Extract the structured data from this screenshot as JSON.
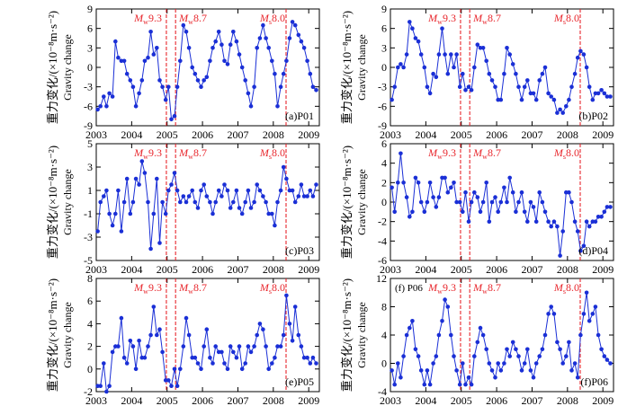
{
  "figure": {
    "ylabel_cn": "重力变化/(×10⁻⁸m·s⁻²)",
    "ylabel_en": "Gravity change",
    "x_ticks": [
      "2003",
      "2004",
      "2005",
      "2006",
      "2007",
      "2008",
      "2009"
    ],
    "events": [
      {
        "prefix": "M",
        "sub": "w",
        "value": "9.3",
        "year": 2004.98
      },
      {
        "prefix": "M",
        "sub": "w",
        "value": "8.7",
        "year": 2005.24
      },
      {
        "prefix": "M",
        "sub": "s",
        "value": "8.0",
        "year": 2008.36
      }
    ],
    "colors": {
      "series": "#1a2fd6",
      "event": "#e8262c",
      "axis": "#000000"
    }
  },
  "chart_data": [
    {
      "type": "line",
      "title": "(a)P01",
      "panel_label": "(a)P01",
      "xlabel": "",
      "ylabel": "Gravity change",
      "xlim": [
        2003,
        2009.3
      ],
      "ylim": [
        -9,
        9
      ],
      "y_ticks": [
        -9,
        -6,
        -3,
        0,
        3,
        6,
        9
      ],
      "x": [
        2003.04,
        2003.12,
        2003.21,
        2003.29,
        2003.37,
        2003.46,
        2003.54,
        2003.62,
        2003.71,
        2003.79,
        2003.87,
        2003.96,
        2004.04,
        2004.12,
        2004.21,
        2004.29,
        2004.37,
        2004.46,
        2004.54,
        2004.62,
        2004.71,
        2004.79,
        2004.87,
        2004.96,
        2005.04,
        2005.12,
        2005.21,
        2005.29,
        2005.37,
        2005.46,
        2005.54,
        2005.62,
        2005.71,
        2005.79,
        2005.87,
        2005.96,
        2006.04,
        2006.12,
        2006.21,
        2006.29,
        2006.37,
        2006.46,
        2006.54,
        2006.62,
        2006.71,
        2006.79,
        2006.87,
        2006.96,
        2007.04,
        2007.12,
        2007.21,
        2007.29,
        2007.37,
        2007.46,
        2007.54,
        2007.62,
        2007.71,
        2007.79,
        2007.87,
        2007.96,
        2008.04,
        2008.12,
        2008.21,
        2008.29,
        2008.37,
        2008.46,
        2008.54,
        2008.62,
        2008.71,
        2008.79,
        2008.87,
        2008.96,
        2009.04,
        2009.12,
        2009.21
      ],
      "values": [
        -6.5,
        -6,
        -4.5,
        -6,
        -4,
        -4.5,
        4,
        1.5,
        1,
        1,
        -1,
        -2,
        -3,
        -6,
        -4,
        -2,
        1,
        1.5,
        5.5,
        2,
        3,
        -2,
        -3,
        -5,
        -3,
        -8,
        -7.5,
        -3,
        1,
        6.5,
        5.5,
        3,
        0,
        -1,
        -2,
        -3,
        -2,
        -1.5,
        1,
        3,
        4,
        5.5,
        3.5,
        1,
        0.5,
        3.5,
        5.5,
        4,
        2,
        0,
        -2,
        -4,
        -6,
        -3,
        3,
        4.5,
        6.5,
        4.5,
        3,
        1,
        -1,
        -6,
        -3,
        -1,
        1,
        4.5,
        7,
        6.5,
        5,
        4,
        3,
        1,
        -1,
        -3,
        -3.5
      ]
    },
    {
      "type": "line",
      "title": "(b)P02",
      "panel_label": "(b)P02",
      "xlabel": "",
      "ylabel": "Gravity change",
      "xlim": [
        2003,
        2009.3
      ],
      "ylim": [
        -9,
        9
      ],
      "y_ticks": [
        -9,
        -6,
        -3,
        0,
        3,
        6,
        9
      ],
      "x": [
        2003.04,
        2003.12,
        2003.21,
        2003.29,
        2003.37,
        2003.46,
        2003.54,
        2003.62,
        2003.71,
        2003.79,
        2003.87,
        2003.96,
        2004.04,
        2004.12,
        2004.21,
        2004.29,
        2004.37,
        2004.46,
        2004.54,
        2004.62,
        2004.71,
        2004.79,
        2004.87,
        2004.96,
        2005.04,
        2005.12,
        2005.21,
        2005.29,
        2005.37,
        2005.46,
        2005.54,
        2005.62,
        2005.71,
        2005.79,
        2005.87,
        2005.96,
        2006.04,
        2006.12,
        2006.21,
        2006.29,
        2006.37,
        2006.46,
        2006.54,
        2006.62,
        2006.71,
        2006.79,
        2006.87,
        2006.96,
        2007.04,
        2007.12,
        2007.21,
        2007.29,
        2007.37,
        2007.46,
        2007.54,
        2007.62,
        2007.71,
        2007.79,
        2007.87,
        2007.96,
        2008.04,
        2008.12,
        2008.21,
        2008.29,
        2008.37,
        2008.46,
        2008.54,
        2008.62,
        2008.71,
        2008.79,
        2008.87,
        2008.96,
        2009.04,
        2009.12,
        2009.21
      ],
      "values": [
        -5,
        -3,
        0,
        0.5,
        0,
        2,
        7,
        6,
        4.5,
        4,
        2,
        0,
        -3,
        -4,
        -1,
        -1.5,
        2,
        6,
        2,
        -1,
        2,
        0,
        2,
        -3,
        -1,
        -3.5,
        -3,
        -3.5,
        0,
        3.5,
        3,
        3,
        1,
        -1,
        -2,
        -3,
        -5,
        -5,
        -1,
        3,
        2,
        0.5,
        -1,
        -3,
        -5,
        -3,
        -2,
        -4,
        -4,
        -5,
        -2,
        -1,
        0,
        -4,
        -4.5,
        -5,
        -7,
        -6.5,
        -7,
        -6,
        -5,
        -3,
        -1,
        1.5,
        2.5,
        2,
        0,
        -3,
        -5,
        -4,
        -4,
        -3.5,
        -4,
        -4.5,
        -4.5
      ]
    },
    {
      "type": "line",
      "title": "(c)P03",
      "panel_label": "(c)P03",
      "xlabel": "",
      "ylabel": "Gravity change",
      "xlim": [
        2003,
        2009.3
      ],
      "ylim": [
        -5,
        5
      ],
      "y_ticks": [
        -5,
        -3,
        -1,
        1,
        3,
        5
      ],
      "x": [
        2003.04,
        2003.12,
        2003.21,
        2003.29,
        2003.37,
        2003.46,
        2003.54,
        2003.62,
        2003.71,
        2003.79,
        2003.87,
        2003.96,
        2004.04,
        2004.12,
        2004.21,
        2004.29,
        2004.37,
        2004.46,
        2004.54,
        2004.62,
        2004.71,
        2004.79,
        2004.87,
        2004.96,
        2005.04,
        2005.12,
        2005.21,
        2005.29,
        2005.37,
        2005.46,
        2005.54,
        2005.62,
        2005.71,
        2005.79,
        2005.87,
        2005.96,
        2006.04,
        2006.12,
        2006.21,
        2006.29,
        2006.37,
        2006.46,
        2006.54,
        2006.62,
        2006.71,
        2006.79,
        2006.87,
        2006.96,
        2007.04,
        2007.12,
        2007.21,
        2007.29,
        2007.37,
        2007.46,
        2007.54,
        2007.62,
        2007.71,
        2007.79,
        2007.87,
        2007.96,
        2008.04,
        2008.12,
        2008.21,
        2008.29,
        2008.37,
        2008.46,
        2008.54,
        2008.62,
        2008.71,
        2008.79,
        2008.87,
        2008.96,
        2009.04,
        2009.12,
        2009.21
      ],
      "values": [
        -2.5,
        0,
        0.5,
        1,
        -1,
        -2,
        -1,
        1,
        -2.5,
        0,
        2,
        -1,
        0,
        2,
        1.5,
        3.5,
        2.5,
        0,
        -4,
        -1,
        2,
        -3.5,
        0,
        -1,
        1,
        1.5,
        2.5,
        1,
        0,
        0.5,
        0,
        0.5,
        1,
        0,
        -0.5,
        1,
        1.5,
        0.5,
        0,
        -1,
        0,
        1,
        0.5,
        1.5,
        1,
        -0.5,
        0,
        1,
        -0.5,
        -1,
        0,
        1,
        -0.5,
        0,
        1.5,
        1,
        0.5,
        0,
        -1,
        -1,
        -2,
        0,
        1,
        3,
        2,
        1,
        1,
        0,
        0.5,
        1.5,
        0.5,
        0.5,
        1,
        0.5,
        1.5
      ]
    },
    {
      "type": "line",
      "title": "(d)P04",
      "panel_label": "(d)P04",
      "xlabel": "",
      "ylabel": "Gravity change",
      "xlim": [
        2003,
        2009.3
      ],
      "ylim": [
        -6,
        6
      ],
      "y_ticks": [
        -6,
        -4,
        -2,
        0,
        2,
        4,
        6
      ],
      "x": [
        2003.04,
        2003.12,
        2003.21,
        2003.29,
        2003.37,
        2003.46,
        2003.54,
        2003.62,
        2003.71,
        2003.79,
        2003.87,
        2003.96,
        2004.04,
        2004.12,
        2004.21,
        2004.29,
        2004.37,
        2004.46,
        2004.54,
        2004.62,
        2004.71,
        2004.79,
        2004.87,
        2004.96,
        2005.04,
        2005.12,
        2005.21,
        2005.29,
        2005.37,
        2005.46,
        2005.54,
        2005.62,
        2005.71,
        2005.79,
        2005.87,
        2005.96,
        2006.04,
        2006.12,
        2006.21,
        2006.29,
        2006.37,
        2006.46,
        2006.54,
        2006.62,
        2006.71,
        2006.79,
        2006.87,
        2006.96,
        2007.04,
        2007.12,
        2007.21,
        2007.29,
        2007.37,
        2007.46,
        2007.54,
        2007.62,
        2007.71,
        2007.79,
        2007.87,
        2007.96,
        2008.04,
        2008.12,
        2008.21,
        2008.29,
        2008.37,
        2008.46,
        2008.54,
        2008.62,
        2008.71,
        2008.79,
        2008.87,
        2008.96,
        2009.04,
        2009.12,
        2009.21
      ],
      "values": [
        1.5,
        -1,
        2,
        5,
        2,
        0.5,
        -1.5,
        -1,
        2.5,
        2,
        0,
        -1,
        0,
        2,
        0.5,
        -0.5,
        0.5,
        2.5,
        2.5,
        1,
        1.5,
        2,
        0,
        0,
        -1,
        1,
        -2,
        0,
        1,
        0.5,
        -1,
        0,
        2,
        -2,
        0,
        0.5,
        -1,
        0,
        1.5,
        0,
        2.5,
        1,
        -1,
        0,
        1,
        -1,
        -2,
        0,
        -0.5,
        -2,
        1,
        0,
        -1,
        -2,
        -2.5,
        -2,
        -2.5,
        -5.5,
        -3,
        1,
        1,
        0,
        -2,
        -3,
        -5,
        -4.5,
        -2,
        -2.5,
        -2,
        -2,
        -1.5,
        -1.5,
        -1,
        -0.5,
        -0.5
      ]
    },
    {
      "type": "line",
      "title": "(e)P05",
      "panel_label": "(e)P05",
      "xlabel": "",
      "ylabel": "Gravity change",
      "xlim": [
        2003,
        2009.3
      ],
      "ylim": [
        -2,
        8
      ],
      "y_ticks": [
        -2,
        0,
        2,
        4,
        6,
        8
      ],
      "x": [
        2003.04,
        2003.12,
        2003.21,
        2003.29,
        2003.37,
        2003.46,
        2003.54,
        2003.62,
        2003.71,
        2003.79,
        2003.87,
        2003.96,
        2004.04,
        2004.12,
        2004.21,
        2004.29,
        2004.37,
        2004.46,
        2004.54,
        2004.62,
        2004.71,
        2004.79,
        2004.87,
        2004.96,
        2005.04,
        2005.12,
        2005.21,
        2005.29,
        2005.37,
        2005.46,
        2005.54,
        2005.62,
        2005.71,
        2005.79,
        2005.87,
        2005.96,
        2006.04,
        2006.12,
        2006.21,
        2006.29,
        2006.37,
        2006.46,
        2006.54,
        2006.62,
        2006.71,
        2006.79,
        2006.87,
        2006.96,
        2007.04,
        2007.12,
        2007.21,
        2007.29,
        2007.37,
        2007.46,
        2007.54,
        2007.62,
        2007.71,
        2007.79,
        2007.87,
        2007.96,
        2008.04,
        2008.12,
        2008.21,
        2008.29,
        2008.37,
        2008.46,
        2008.54,
        2008.62,
        2008.71,
        2008.79,
        2008.87,
        2008.96,
        2009.04,
        2009.12,
        2009.21
      ],
      "values": [
        -1.5,
        -1.5,
        0.5,
        -2,
        -1.5,
        1.5,
        2,
        2,
        4.5,
        1,
        0.5,
        2.5,
        2,
        0,
        2.5,
        1,
        1,
        2,
        3,
        5.5,
        3,
        3.5,
        1.5,
        -1,
        -1,
        -1.5,
        0,
        -1.5,
        0,
        2,
        4.5,
        3,
        1,
        1,
        0.5,
        0,
        2,
        3.5,
        1,
        0.5,
        2,
        1.5,
        1.5,
        0.5,
        0,
        2,
        1.5,
        1,
        2,
        0,
        0.5,
        2,
        1.5,
        2,
        3,
        4,
        3.5,
        2,
        0,
        0.5,
        1,
        2,
        2,
        3,
        6.5,
        4,
        2.5,
        5.5,
        3,
        2,
        1,
        1,
        0.5,
        1,
        0.5
      ]
    },
    {
      "type": "line",
      "title": "(f)P06",
      "panel_label": "(f)P06",
      "corner_label": "(f) P06",
      "xlabel": "",
      "ylabel": "Gravity change",
      "xlim": [
        2003,
        2009.3
      ],
      "ylim": [
        -4,
        12
      ],
      "y_ticks": [
        -4,
        0,
        4,
        8,
        12
      ],
      "x": [
        2003.04,
        2003.12,
        2003.21,
        2003.29,
        2003.37,
        2003.46,
        2003.54,
        2003.62,
        2003.71,
        2003.79,
        2003.87,
        2003.96,
        2004.04,
        2004.12,
        2004.21,
        2004.29,
        2004.37,
        2004.46,
        2004.54,
        2004.62,
        2004.71,
        2004.79,
        2004.87,
        2004.96,
        2005.04,
        2005.12,
        2005.21,
        2005.29,
        2005.37,
        2005.46,
        2005.54,
        2005.62,
        2005.71,
        2005.79,
        2005.87,
        2005.96,
        2006.04,
        2006.12,
        2006.21,
        2006.29,
        2006.37,
        2006.46,
        2006.54,
        2006.62,
        2006.71,
        2006.79,
        2006.87,
        2006.96,
        2007.04,
        2007.12,
        2007.21,
        2007.29,
        2007.37,
        2007.46,
        2007.54,
        2007.62,
        2007.71,
        2007.79,
        2007.87,
        2007.96,
        2008.04,
        2008.12,
        2008.21,
        2008.29,
        2008.37,
        2008.46,
        2008.54,
        2008.62,
        2008.71,
        2008.79,
        2008.87,
        2008.96,
        2009.04,
        2009.12,
        2009.21
      ],
      "values": [
        -1,
        -3,
        0,
        -2,
        1,
        4,
        5,
        6,
        2,
        1,
        -1,
        -3,
        -1,
        -3,
        0,
        1,
        4,
        6,
        9,
        8,
        4,
        1,
        -1,
        -3,
        0,
        -3,
        -2,
        -3,
        1,
        3,
        5,
        4,
        2,
        0,
        -1,
        -2,
        0,
        -1,
        0,
        2,
        1,
        3,
        2,
        1,
        -1,
        0,
        2,
        -1,
        -2,
        0,
        1,
        2,
        4,
        7,
        8,
        7,
        3,
        2,
        0,
        1,
        3,
        -1,
        0,
        -2,
        4,
        7,
        10,
        6,
        7,
        8,
        4,
        2,
        1,
        0.5,
        0
      ]
    }
  ]
}
